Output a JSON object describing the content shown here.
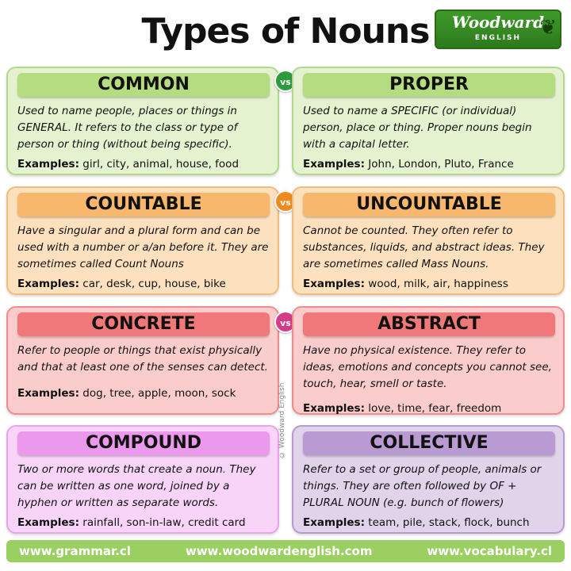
{
  "title": "Types of Nouns",
  "logo": {
    "brand": "Woodward",
    "sub": "ENGLISH"
  },
  "vs_label": "vs",
  "copyright": "© Woodward English",
  "rows": [
    {
      "vs_color": "#2e9a3e",
      "left": {
        "heading": "COMMON",
        "description": "Used to name people, places or things in GENERAL. It refers to the class or type of person or thing (without being specific).",
        "examples_label": "Examples:",
        "examples": "girl, city, animal, house, food"
      },
      "right": {
        "heading": "PROPER",
        "description": "Used to name a SPECIFIC (or individual) person, place or thing. Proper nouns begin with a capital letter.",
        "examples_label": "Examples:",
        "examples": "John, London, Pluto, France"
      }
    },
    {
      "vs_color": "#f08a1c",
      "left": {
        "heading": "COUNTABLE",
        "description": "Have a singular and a plural form and can be used with a number or a/an before it. They are sometimes called Count Nouns",
        "examples_label": "Examples:",
        "examples": "car, desk, cup, house, bike"
      },
      "right": {
        "heading": "UNCOUNTABLE",
        "description": "Cannot be counted. They often refer to substances, liquids, and abstract ideas. They are sometimes called Mass Nouns.",
        "examples_label": "Examples:",
        "examples": "wood, milk, air, happiness"
      }
    },
    {
      "vs_color": "#d63a8a",
      "left": {
        "heading": "CONCRETE",
        "description": "Refer to people or things that exist physically and that at least one of the senses can detect.",
        "examples_label": "Examples:",
        "examples": "dog, tree, apple, moon, sock"
      },
      "right": {
        "heading": "ABSTRACT",
        "description": "Have no physical existence. They refer to ideas, emotions and concepts you cannot see, touch, hear, smell or taste.",
        "examples_label": "Examples:",
        "examples": "love, time, fear, freedom"
      }
    },
    {
      "left": {
        "heading": "COMPOUND",
        "description": "Two or more words that create a noun. They can be written as one word,  joined by a hyphen or written as separate words.",
        "examples_label": "Examples:",
        "examples": "rainfall, son-in-law, credit card"
      },
      "right": {
        "heading": "COLLECTIVE",
        "description": "Refer to a set or group of people, animals or things. They are often followed by OF + PLURAL NOUN  (e.g. bunch of flowers)",
        "examples_label": "Examples:",
        "examples": "team, pile, stack, flock, bunch"
      }
    }
  ],
  "footer": {
    "left": "www.grammar.cl",
    "center": "www.woodwardenglish.com",
    "right": "www.vocabulary.cl"
  }
}
